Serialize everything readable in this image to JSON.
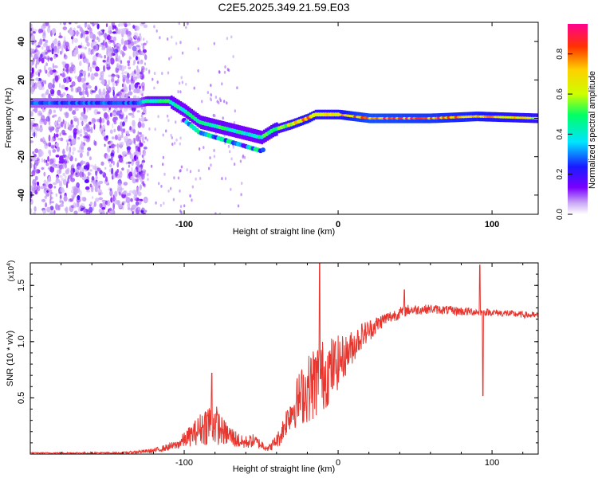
{
  "title": "C2E5.2025.349.21.59.E03",
  "chart_data": [
    {
      "type": "heatmap",
      "name": "spectrogram",
      "xlabel": "Height of straight line (km)",
      "ylabel": "Frequency (Hz)",
      "xlim": [
        -200,
        130
      ],
      "ylim": [
        -50,
        50
      ],
      "xticks": [
        -100,
        0,
        100
      ],
      "yticks": [
        -40,
        -20,
        0,
        20,
        40
      ],
      "colorbar": {
        "label": "Normalized spectral amplitude",
        "range": [
          0.0,
          0.95
        ],
        "ticks": [
          0.0,
          0.2,
          0.4,
          0.6,
          0.8
        ],
        "tick_labels": [
          "0.0",
          "0.2",
          "0.4",
          "0.6",
          "0.8"
        ]
      },
      "ridge": {
        "description_points": [
          {
            "x": -200,
            "freq": 8,
            "amp": 0.3
          },
          {
            "x": -130,
            "freq": 8,
            "amp": 0.3
          },
          {
            "x": -125,
            "freq": 9,
            "amp": 0.45
          },
          {
            "x": -110,
            "freq": 9,
            "amp": 0.5
          },
          {
            "x": -100,
            "freq": 4,
            "amp": 0.45
          },
          {
            "x": -90,
            "freq": -2,
            "amp": 0.5
          },
          {
            "x": -75,
            "freq": -5,
            "amp": 0.5
          },
          {
            "x": -60,
            "freq": -8,
            "amp": 0.45
          },
          {
            "x": -50,
            "freq": -10,
            "amp": 0.5
          },
          {
            "x": -42,
            "freq": -6,
            "amp": 0.6
          },
          {
            "x": -30,
            "freq": -3,
            "amp": 0.7
          },
          {
            "x": -20,
            "freq": 0,
            "amp": 0.8
          },
          {
            "x": -15,
            "freq": 2,
            "amp": 0.7
          },
          {
            "x": 0,
            "freq": 2,
            "amp": 0.75
          },
          {
            "x": 10,
            "freq": 1,
            "amp": 0.85
          },
          {
            "x": 20,
            "freq": 0,
            "amp": 0.9
          },
          {
            "x": 60,
            "freq": 0,
            "amp": 0.85
          },
          {
            "x": 90,
            "freq": 1,
            "amp": 0.8
          },
          {
            "x": 130,
            "freq": 0,
            "amp": 0.7
          }
        ]
      }
    },
    {
      "type": "line",
      "name": "snr",
      "xlabel": "Height of straight line (km)",
      "ylabel": "SNR (10 * v/v)",
      "scale_label": "(x10",
      "scale_exp": "4",
      "scale_close": ")",
      "xlim": [
        -200,
        130
      ],
      "ylim": [
        0,
        1.7
      ],
      "xticks": [
        -100,
        0,
        100
      ],
      "yticks": [
        0.5,
        1.0,
        1.5
      ],
      "ytick_labels": [
        "0.5",
        "1.0",
        "1.5"
      ],
      "color": "#e8352e",
      "series": [
        {
          "name": "SNR",
          "envelope_points": [
            {
              "x": -200,
              "y": 0.01,
              "noise": 0.005
            },
            {
              "x": -140,
              "y": 0.01,
              "noise": 0.008
            },
            {
              "x": -120,
              "y": 0.03,
              "noise": 0.02
            },
            {
              "x": -105,
              "y": 0.08,
              "noise": 0.04
            },
            {
              "x": -92,
              "y": 0.2,
              "noise": 0.12
            },
            {
              "x": -82,
              "y": 0.3,
              "noise": 0.22
            },
            {
              "x": -75,
              "y": 0.2,
              "noise": 0.12
            },
            {
              "x": -62,
              "y": 0.1,
              "noise": 0.06
            },
            {
              "x": -55,
              "y": 0.12,
              "noise": 0.06
            },
            {
              "x": -45,
              "y": 0.05,
              "noise": 0.03
            },
            {
              "x": -38,
              "y": 0.15,
              "noise": 0.08
            },
            {
              "x": -32,
              "y": 0.35,
              "noise": 0.15
            },
            {
              "x": -25,
              "y": 0.5,
              "noise": 0.25
            },
            {
              "x": -15,
              "y": 0.65,
              "noise": 0.35
            },
            {
              "x": -5,
              "y": 0.75,
              "noise": 0.3
            },
            {
              "x": 5,
              "y": 0.88,
              "noise": 0.18
            },
            {
              "x": 15,
              "y": 1.05,
              "noise": 0.12
            },
            {
              "x": 30,
              "y": 1.2,
              "noise": 0.06
            },
            {
              "x": 45,
              "y": 1.28,
              "noise": 0.05
            },
            {
              "x": 60,
              "y": 1.29,
              "noise": 0.04
            },
            {
              "x": 80,
              "y": 1.27,
              "noise": 0.04
            },
            {
              "x": 100,
              "y": 1.26,
              "noise": 0.03
            },
            {
              "x": 130,
              "y": 1.23,
              "noise": 0.03
            }
          ],
          "spikes": [
            {
              "x": -82,
              "y": 0.72
            },
            {
              "x": -12,
              "y": 1.7
            },
            {
              "x": 92,
              "y": 1.68
            },
            {
              "x": 94,
              "y": 0.52
            },
            {
              "x": 43,
              "y": 1.46
            }
          ]
        }
      ]
    }
  ]
}
